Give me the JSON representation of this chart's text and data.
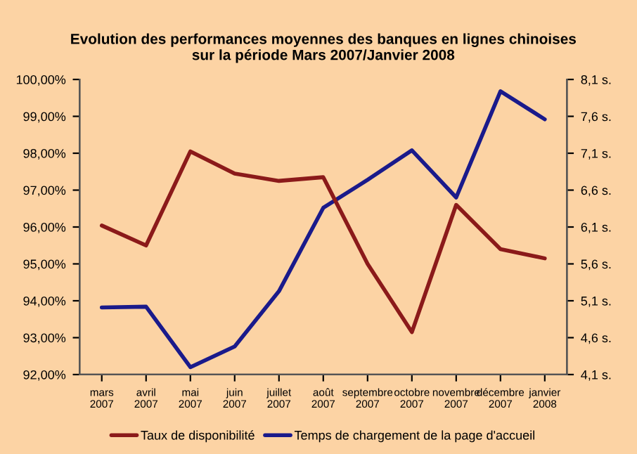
{
  "chart_data": {
    "type": "line",
    "title": "Evolution des performances moyennes des banques en lignes chinoises\nsur la période Mars 2007/Janvier 2008",
    "categories": [
      "mars\n2007",
      "avril\n2007",
      "mai\n2007",
      "juin\n2007",
      "juillet\n2007",
      "août\n2007",
      "septembre\n2007",
      "octobre\n2007",
      "novembre\n2007",
      "décembre\n2007",
      "janvier\n2008"
    ],
    "series": [
      {
        "name": "Taux de disponibilité",
        "color": "#8b1a1a",
        "values": [
          96.04,
          95.5,
          98.05,
          97.45,
          97.25,
          97.35,
          95.0,
          93.15,
          96.6,
          95.4,
          95.15
        ]
      },
      {
        "name": "Temps de chargement de la page d'accueil",
        "color": "#1a1a8b",
        "axis": "y2",
        "values": [
          5.01,
          5.02,
          4.2,
          4.48,
          5.23,
          6.36,
          6.74,
          7.14,
          6.5,
          7.94,
          7.56
        ]
      }
    ],
    "ylim": [
      92,
      100
    ],
    "yticks": [
      {
        "value": 92,
        "label": "92,00%"
      },
      {
        "value": 93,
        "label": "93,00%"
      },
      {
        "value": 94,
        "label": "94,00%"
      },
      {
        "value": 95,
        "label": "95,00%"
      },
      {
        "value": 96,
        "label": "96,00%"
      },
      {
        "value": 97,
        "label": "97,00%"
      },
      {
        "value": 98,
        "label": "98,00%"
      },
      {
        "value": 99,
        "label": "99,00%"
      },
      {
        "value": 100,
        "label": "100,00%"
      }
    ],
    "y2lim": [
      4.1,
      8.1
    ],
    "y2ticks": [
      {
        "value": 4.1,
        "label": "4,1 s."
      },
      {
        "value": 4.6,
        "label": "4,6 s."
      },
      {
        "value": 5.1,
        "label": "5,1 s."
      },
      {
        "value": 5.6,
        "label": "5,6 s."
      },
      {
        "value": 6.1,
        "label": "6,1 s."
      },
      {
        "value": 6.6,
        "label": "6,6 s."
      },
      {
        "value": 7.1,
        "label": "7,1 s."
      },
      {
        "value": 7.6,
        "label": "7,6 s."
      },
      {
        "value": 8.1,
        "label": "8,1 s."
      }
    ],
    "legend": "bottom",
    "grid": false,
    "marker": "none",
    "line_style": "solid"
  }
}
